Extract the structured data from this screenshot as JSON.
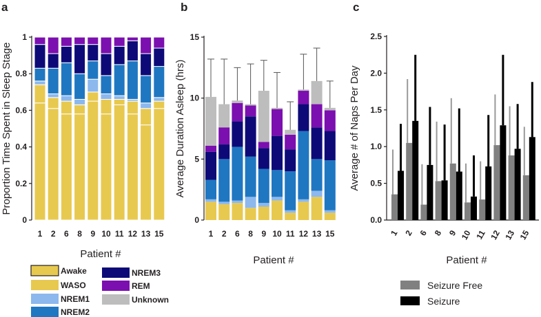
{
  "colors": {
    "Awake": "#e8c94f",
    "WASO": "#e8c94f",
    "NREM1": "#8cb8ee",
    "NREM2": "#1f77c2",
    "NREM3": "#0d0a78",
    "REM": "#7c0fb0",
    "Unknown": "#bdbdbd",
    "seizure_free": "#808080",
    "seizure": "#000000",
    "errorbar_gray": "#999999",
    "errorbar_dark": "#555555"
  },
  "chart_data": [
    {
      "panel": "a",
      "type": "bar",
      "stacked": true,
      "xlabel": "Patient #",
      "ylabel": "Proportion Time Spent in Sleep Stage",
      "ylim": [
        0,
        1
      ],
      "yticks": [
        0,
        0.2,
        0.4,
        0.6,
        0.8,
        1
      ],
      "ytick_labels": [
        "0",
        "0.2",
        "0.4",
        "0.6",
        "0.8",
        "1"
      ],
      "categories": [
        "1",
        "2",
        "6",
        "8",
        "9",
        "10",
        "11",
        "12",
        "13",
        "15"
      ],
      "series": [
        {
          "name": "Awake",
          "values": [
            0.64,
            0.61,
            0.58,
            0.58,
            0.65,
            0.58,
            0.63,
            0.58,
            0.52,
            0.61
          ]
        },
        {
          "name": "WASO",
          "values": [
            0.1,
            0.06,
            0.07,
            0.05,
            0.05,
            0.08,
            0.03,
            0.07,
            0.09,
            0.04
          ]
        },
        {
          "name": "NREM1",
          "values": [
            0.02,
            0.02,
            0.03,
            0.03,
            0.07,
            0.03,
            0.02,
            0.01,
            0.03,
            0.02
          ]
        },
        {
          "name": "NREM2",
          "values": [
            0.07,
            0.14,
            0.18,
            0.14,
            0.1,
            0.1,
            0.17,
            0.21,
            0.15,
            0.17
          ]
        },
        {
          "name": "NREM3",
          "values": [
            0.13,
            0.08,
            0.09,
            0.16,
            0.09,
            0.12,
            0.1,
            0.11,
            0.12,
            0.1
          ]
        },
        {
          "name": "REM",
          "values": [
            0.04,
            0.09,
            0.05,
            0.04,
            0.04,
            0.09,
            0.05,
            0.02,
            0.09,
            0.06
          ]
        }
      ]
    },
    {
      "panel": "b",
      "type": "bar",
      "stacked": true,
      "xlabel": "Patient #",
      "ylabel": "Average Duration Asleep (hrs)",
      "ylim": [
        0,
        15
      ],
      "yticks": [
        0,
        5,
        10,
        15
      ],
      "ytick_labels": [
        "0",
        "5",
        "10",
        "15"
      ],
      "categories": [
        "1",
        "2",
        "6",
        "8",
        "9",
        "10",
        "11",
        "12",
        "13",
        "15"
      ],
      "series": [
        {
          "name": "WASO",
          "values": [
            1.5,
            1.3,
            1.4,
            1.0,
            1.1,
            1.6,
            0.6,
            1.5,
            1.9,
            0.6
          ]
        },
        {
          "name": "NREM1",
          "values": [
            0.2,
            0.2,
            0.2,
            0.9,
            0.3,
            0.3,
            0.2,
            0.2,
            0.5,
            0.2
          ]
        },
        {
          "name": "NREM2",
          "values": [
            1.6,
            3.5,
            4.4,
            3.3,
            2.8,
            2.2,
            3.2,
            5.6,
            2.6,
            4.1
          ]
        },
        {
          "name": "NREM3",
          "values": [
            2.3,
            1.2,
            2.1,
            3.3,
            1.7,
            2.8,
            1.8,
            2.2,
            2.6,
            2.4
          ]
        },
        {
          "name": "REM",
          "values": [
            0.5,
            1.4,
            1.5,
            0.9,
            0.5,
            2.2,
            1.2,
            1.1,
            1.9,
            1.7
          ]
        },
        {
          "name": "Unknown",
          "values": [
            4.0,
            1.9,
            0.2,
            0.1,
            4.2,
            0.1,
            0.4,
            0.1,
            1.9,
            0.2
          ]
        }
      ],
      "error_upper": [
        13.2,
        13.2,
        12.5,
        12.8,
        13.1,
        12.1,
        9.7,
        13.6,
        14.1,
        11.4
      ]
    },
    {
      "panel": "c",
      "type": "bar",
      "xlabel": "Patient #",
      "ylabel": "Average # of Naps Per Day",
      "ylim": [
        0,
        2.5
      ],
      "yticks": [
        0,
        0.5,
        1,
        1.5,
        2,
        2.5
      ],
      "ytick_labels": [
        "0.0",
        "0.5",
        "1.0",
        "1.5",
        "2.0",
        "2.5"
      ],
      "categories": [
        "1",
        "2",
        "6",
        "8",
        "9",
        "10",
        "11",
        "12",
        "13",
        "15"
      ],
      "series": [
        {
          "name": "Seizure Free",
          "values": [
            0.35,
            1.05,
            0.21,
            0.53,
            0.77,
            0.24,
            0.28,
            1.02,
            0.88,
            0.61
          ],
          "error_upper": [
            0.96,
            1.92,
            0.76,
            1.34,
            1.66,
            0.77,
            0.8,
            1.71,
            1.55,
            1.27
          ]
        },
        {
          "name": "Seizure",
          "values": [
            0.67,
            1.35,
            0.75,
            0.54,
            0.66,
            0.32,
            0.73,
            1.29,
            0.97,
            1.13
          ],
          "error_upper": [
            1.31,
            2.25,
            1.54,
            1.3,
            1.52,
            0.88,
            1.43,
            2.25,
            1.58,
            1.88
          ]
        }
      ]
    }
  ],
  "legend_stages": [
    "Awake",
    "WASO",
    "NREM1",
    "NREM2",
    "NREM3",
    "REM",
    "Unknown"
  ],
  "legend_naps": [
    "Seizure Free",
    "Seizure"
  ],
  "panel_letters": [
    "a",
    "b",
    "c"
  ]
}
